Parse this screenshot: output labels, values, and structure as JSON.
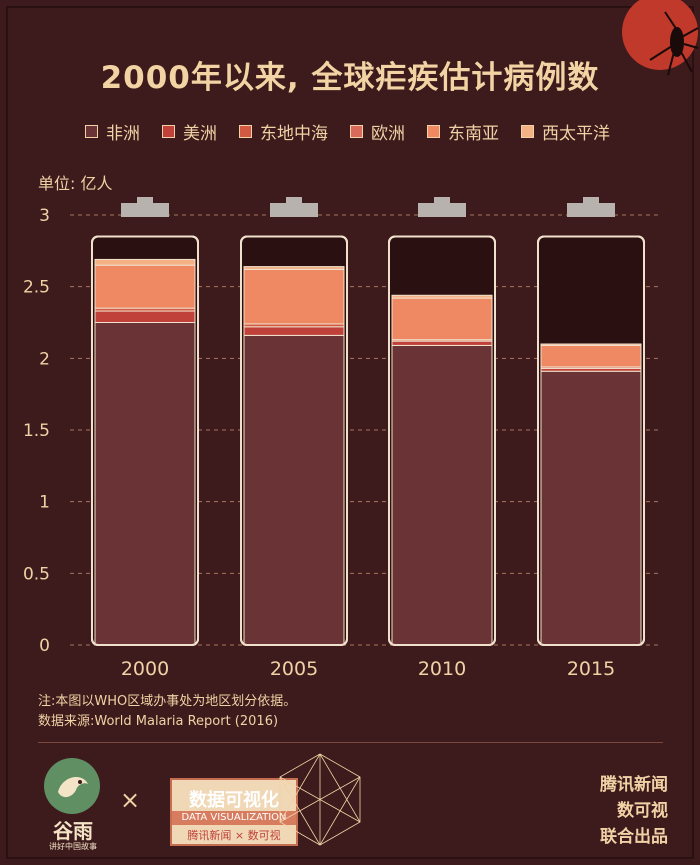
{
  "title": "2000年以来, 全球疟疾估计病例数",
  "unit_label": "单位: 亿人",
  "legend": [
    {
      "name": "非洲",
      "color": "#6a3436"
    },
    {
      "name": "美洲",
      "color": "#c0413a"
    },
    {
      "name": "东地中海",
      "color": "#d25a43"
    },
    {
      "name": "欧洲",
      "color": "#d9695a"
    },
    {
      "name": "东南亚",
      "color": "#ef8964"
    },
    {
      "name": "西太平洋",
      "color": "#f3b185"
    }
  ],
  "chart_data": {
    "type": "bar",
    "stacked": true,
    "title": "2000年以来, 全球疟疾估计病例数",
    "ylabel": "单位: 亿人",
    "xlabel": "",
    "ylim": [
      0,
      3
    ],
    "y_ticks": [
      0,
      0.5,
      1,
      1.5,
      2,
      2.5,
      3
    ],
    "categories": [
      "2000",
      "2005",
      "2010",
      "2015"
    ],
    "series": [
      {
        "name": "非洲",
        "values": [
          2.25,
          2.16,
          2.09,
          1.91
        ]
      },
      {
        "name": "美洲",
        "values": [
          0.08,
          0.06,
          0.03,
          0.02
        ]
      },
      {
        "name": "东地中海",
        "values": [
          0.02,
          0.02,
          0.01,
          0.01
        ]
      },
      {
        "name": "欧洲",
        "values": [
          0.0,
          0.0,
          0.0,
          0.0
        ]
      },
      {
        "name": "东南亚",
        "values": [
          0.3,
          0.38,
          0.29,
          0.15
        ]
      },
      {
        "name": "西太平洋",
        "values": [
          0.04,
          0.02,
          0.02,
          0.01
        ]
      }
    ],
    "grid": true
  },
  "notes": {
    "note": "注:本图以WHO区域办事处为地区划分依据。",
    "source": "数据来源:World Malaria Report (2016)"
  },
  "footer": {
    "guyu_name": "谷雨",
    "guyu_sub": "讲好中国故事",
    "times": "×",
    "dv_title": "数据可视化",
    "dv_sub": "DATA VISUALIZATION",
    "dv_brands": "腾讯新闻 × 数可视",
    "right_lines": [
      "腾讯新闻",
      "数可视",
      "联合出品"
    ]
  }
}
